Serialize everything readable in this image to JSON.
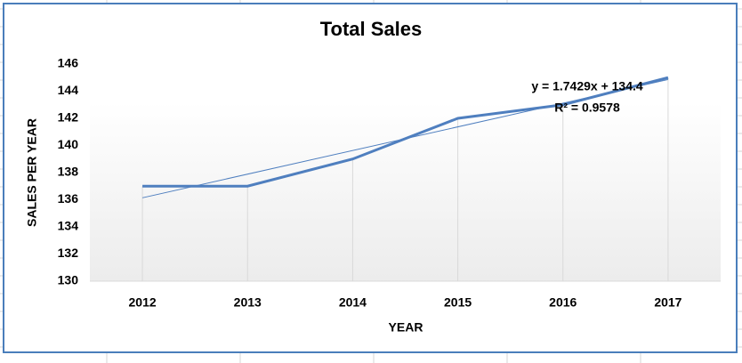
{
  "chart_data": {
    "type": "line",
    "title": "Total Sales",
    "x_label": "YEAR",
    "y_label": "SALES PER YEAR",
    "categories": [
      "2012",
      "2013",
      "2014",
      "2015",
      "2016",
      "2017"
    ],
    "values": [
      137,
      137,
      139,
      142,
      143,
      145
    ],
    "color": "#4f7fbf",
    "ylim": [
      130,
      146
    ],
    "yticks": [
      130,
      132,
      134,
      136,
      138,
      140,
      142,
      144,
      146
    ],
    "trendline": {
      "type": "linear",
      "equation": "y = 1.7429x + 134.4",
      "r_squared": "R² = 0.9578"
    }
  }
}
